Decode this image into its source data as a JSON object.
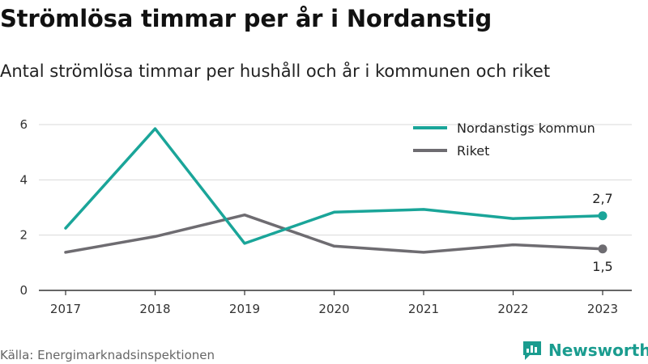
{
  "colors": {
    "kommun": "#1aa599",
    "riket": "#6e6c71",
    "grid": "#d9d9d9",
    "axis": "#333333",
    "brand": "#1a9c8f"
  },
  "page_title": "Strömlösa timmar per år i Nordanstig",
  "subtitle": "Antal strömlösa timmar per hushåll och år i kommunen och riket",
  "source": "Källa: Energimarknadsinspektionen",
  "brand": {
    "name": "Newsworthy",
    "icon": "bar-chart-icon"
  },
  "chart_data": {
    "type": "line",
    "x": [
      "2017",
      "2018",
      "2019",
      "2020",
      "2021",
      "2022",
      "2023"
    ],
    "yticks": [
      "0",
      "2",
      "4",
      "6"
    ],
    "ylim": [
      0,
      6
    ],
    "grid": true,
    "legend_position": "top-right",
    "series": [
      {
        "name": "Nordanstigs kommun",
        "values": [
          2.25,
          5.85,
          1.7,
          2.83,
          2.93,
          2.6,
          2.7
        ],
        "end_label": "2,7"
      },
      {
        "name": "Riket",
        "values": [
          1.38,
          1.95,
          2.73,
          1.6,
          1.38,
          1.65,
          1.5
        ],
        "end_label": "1,5"
      }
    ]
  }
}
